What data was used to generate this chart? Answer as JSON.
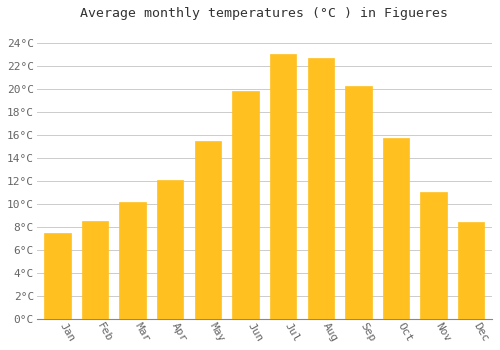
{
  "months": [
    "Jan",
    "Feb",
    "Mar",
    "Apr",
    "May",
    "Jun",
    "Jul",
    "Aug",
    "Sep",
    "Oct",
    "Nov",
    "Dec"
  ],
  "values": [
    7.5,
    8.5,
    10.2,
    12.1,
    15.5,
    19.8,
    23.0,
    22.7,
    20.2,
    15.7,
    11.0,
    8.4
  ],
  "bar_color_top": "#FFC020",
  "bar_color_bottom": "#FFB000",
  "bar_edge_color": "#E8A000",
  "background_color": "#FFFFFF",
  "grid_color": "#CCCCCC",
  "title": "Average monthly temperatures (°C ) in Figueres",
  "title_fontsize": 9.5,
  "title_font": "monospace",
  "tick_font": "monospace",
  "tick_fontsize": 8,
  "ytick_labels": [
    "0°C",
    "2°C",
    "4°C",
    "6°C",
    "8°C",
    "10°C",
    "12°C",
    "14°C",
    "16°C",
    "18°C",
    "20°C",
    "22°C",
    "24°C"
  ],
  "ytick_values": [
    0,
    2,
    4,
    6,
    8,
    10,
    12,
    14,
    16,
    18,
    20,
    22,
    24
  ],
  "ylim": [
    0,
    25.5
  ],
  "bar_width": 0.7
}
